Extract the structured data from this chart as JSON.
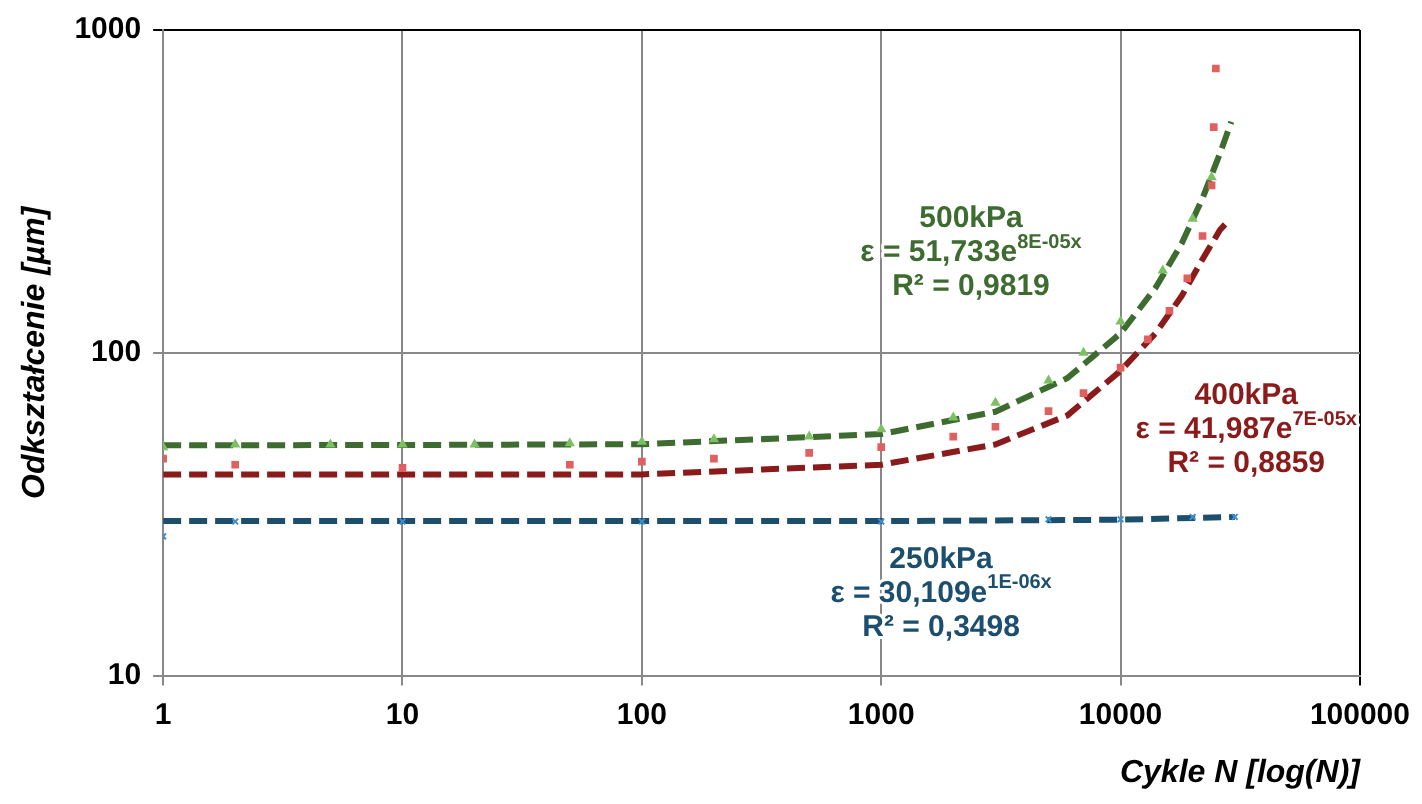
{
  "chart_data": {
    "type": "scatter",
    "xlabel": "Cykle N [log(N)]",
    "ylabel": "Odkształcenie [µm]",
    "log": "xy",
    "grid": true,
    "xlim": [
      1,
      100000
    ],
    "xticks": [
      1,
      10,
      100,
      1000,
      10000,
      100000
    ],
    "ylim": [
      10,
      1000
    ],
    "yticks": [
      10,
      100,
      1000
    ],
    "series": [
      {
        "color": "#7cc063",
        "marker": "triangle",
        "x": [
          1,
          2,
          5,
          10,
          20,
          50,
          100,
          200,
          500,
          1000,
          2000,
          3000,
          5000,
          7000,
          10000,
          15000,
          20000,
          24000
        ],
        "values": [
          51,
          52,
          52,
          52,
          52,
          52.5,
          53,
          54,
          55,
          58,
          63,
          70,
          82,
          100,
          125,
          180,
          260,
          350
        ]
      },
      {
        "color": "#e06060",
        "marker": "square",
        "x": [
          1,
          2,
          10,
          50,
          100,
          200,
          500,
          1000,
          2000,
          3000,
          5000,
          7000,
          10000,
          13000,
          16000,
          19000,
          22000,
          24000,
          24500,
          25000
        ],
        "values": [
          47,
          45,
          44,
          45,
          46,
          47,
          49,
          51,
          55,
          59,
          66,
          75,
          90,
          110,
          135,
          170,
          230,
          330,
          500,
          760
        ]
      },
      {
        "color": "#3a8fd0",
        "marker": "cross",
        "x": [
          1,
          2,
          10,
          100,
          1000,
          5000,
          10000,
          20000,
          30000
        ],
        "values": [
          27,
          30,
          30,
          30,
          30,
          30.5,
          30.5,
          31,
          31
        ]
      },
      {
        "type": "line",
        "line_style": "dashed",
        "color": "#3d6b30",
        "x": [
          1,
          10,
          100,
          1000,
          3000,
          6000,
          10000,
          14000,
          18000,
          22000,
          26000,
          29000
        ],
        "values": [
          51.7,
          51.8,
          52.1,
          56,
          65.7,
          83.5,
          115,
          159,
          218,
          301,
          414,
          520
        ]
      },
      {
        "type": "line",
        "line_style": "dashed",
        "color": "#8b1a1a",
        "x": [
          1,
          100,
          1000,
          3000,
          6000,
          10000,
          14000,
          18000,
          22000,
          26000,
          28000
        ],
        "values": [
          42,
          42,
          45,
          52,
          64,
          88,
          115,
          150,
          195,
          240,
          255
        ]
      },
      {
        "type": "line",
        "line_style": "dashed",
        "color": "#1c4e6e",
        "x": [
          1,
          1000,
          10000,
          30000
        ],
        "values": [
          30.1,
          30.1,
          30.4,
          31
        ]
      }
    ],
    "annotations": [
      "500kPa",
      "ε = 51,733e$^{8E-05x}$",
      "R² = 0,9819",
      "400kPa",
      "ε = 41,987e$^{7E-05x}$",
      "R² = 0,8859",
      "250kPa",
      "ε = 30,109e$^{1E-06x}$",
      "R² = 0,3498"
    ]
  }
}
